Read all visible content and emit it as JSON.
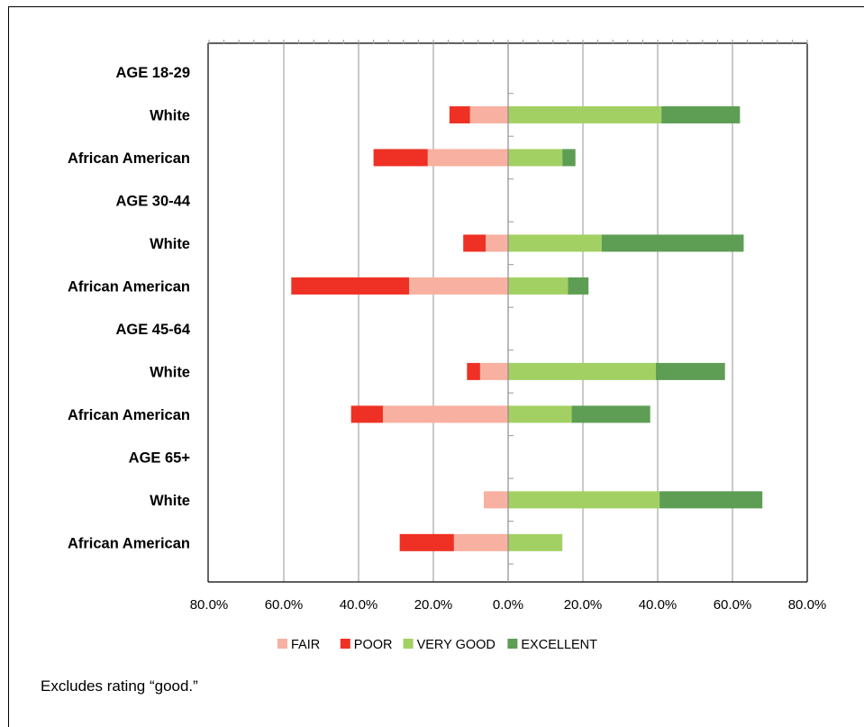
{
  "chart_data": {
    "type": "bar",
    "orientation": "horizontal",
    "stacked": true,
    "diverging": true,
    "categories": [
      "AGE 18-29",
      "White",
      "African American",
      "AGE 30-44",
      "White",
      "African American",
      "AGE 45-64",
      "White",
      "African American",
      "AGE 65+",
      "White",
      "African American"
    ],
    "series": [
      {
        "name": "FAIR",
        "color": "#f8b0a0",
        "values": [
          0,
          -10.2,
          -21.5,
          0,
          -6.0,
          -26.5,
          0,
          -7.5,
          -33.5,
          0,
          -6.5,
          -14.5
        ]
      },
      {
        "name": "POOR",
        "color": "#ee3124",
        "values": [
          0,
          -5.5,
          -14.5,
          0,
          -6.0,
          -31.5,
          0,
          -3.5,
          -8.5,
          0,
          0,
          -14.5
        ]
      },
      {
        "name": "VERY GOOD",
        "color": "#a3d063",
        "values": [
          0,
          41.0,
          14.5,
          0,
          25.0,
          16.0,
          0,
          39.5,
          17.0,
          0,
          40.5,
          14.5
        ]
      },
      {
        "name": "EXCELLENT",
        "color": "#5d9e54",
        "values": [
          0,
          21.0,
          3.5,
          0,
          38.0,
          5.5,
          0,
          18.5,
          21.0,
          0,
          27.5,
          0
        ]
      }
    ],
    "xlim": [
      -80,
      80
    ],
    "x_ticks": [
      -80,
      -60,
      -40,
      -20,
      0,
      20,
      40,
      60,
      80
    ],
    "x_tick_labels": [
      "80.0%",
      "60.0%",
      "40.0%",
      "20.0%",
      "0.0%",
      "20.0%",
      "40.0%",
      "60.0%",
      "80.0%"
    ],
    "grid": true,
    "legend_position": "bottom",
    "footnote": "Excludes rating “good.”"
  }
}
